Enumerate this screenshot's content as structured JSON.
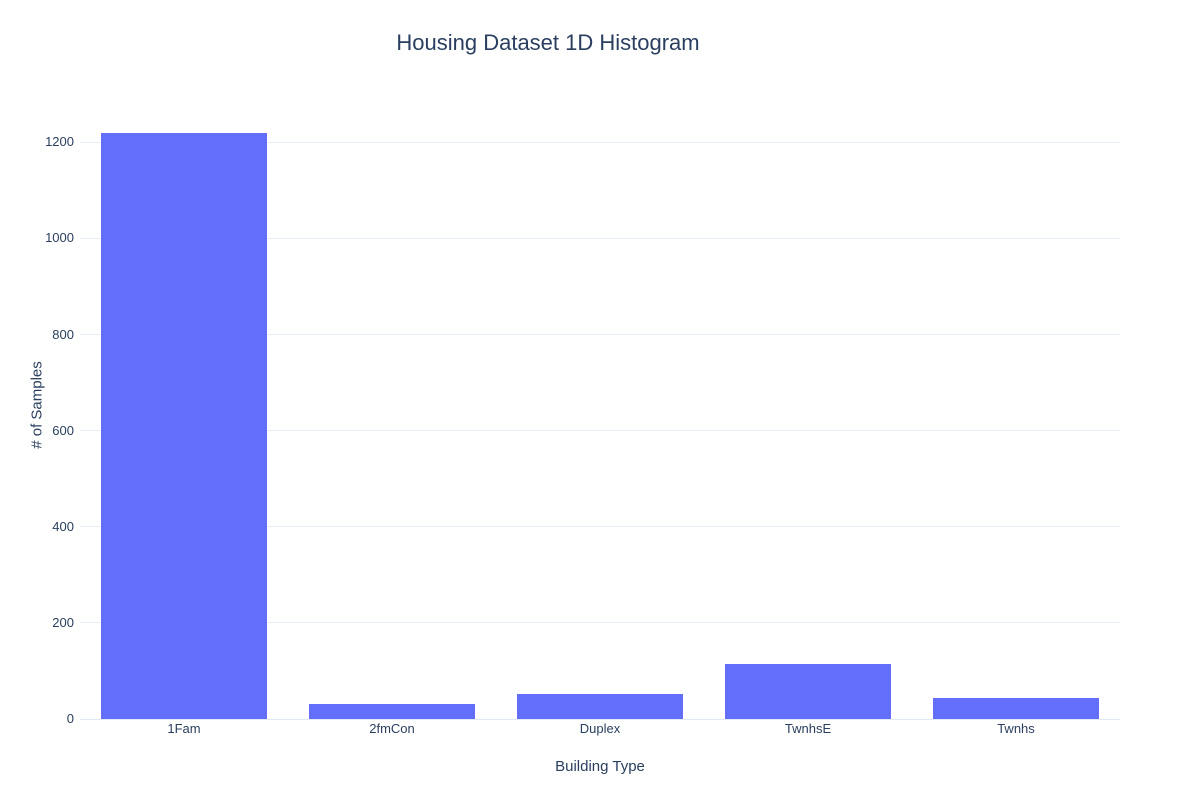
{
  "chart_data": {
    "type": "bar",
    "title": "Housing Dataset 1D Histogram",
    "xlabel": "Building Type",
    "ylabel": "# of Samples",
    "categories": [
      "1Fam",
      "2fmCon",
      "Duplex",
      "TwnhsE",
      "Twnhs"
    ],
    "values": [
      1220,
      31,
      52,
      114,
      43
    ],
    "ylim": [
      0,
      1284
    ],
    "yticks": [
      0,
      200,
      400,
      600,
      800,
      1000,
      1200
    ],
    "grid": true,
    "legend": "none",
    "colors": {
      "bar": "#636EFA",
      "grid": "#E9EDF6",
      "zeroline": "#E2E8F2",
      "text": "#2A3F5F",
      "background": "#FFFFFF"
    }
  }
}
